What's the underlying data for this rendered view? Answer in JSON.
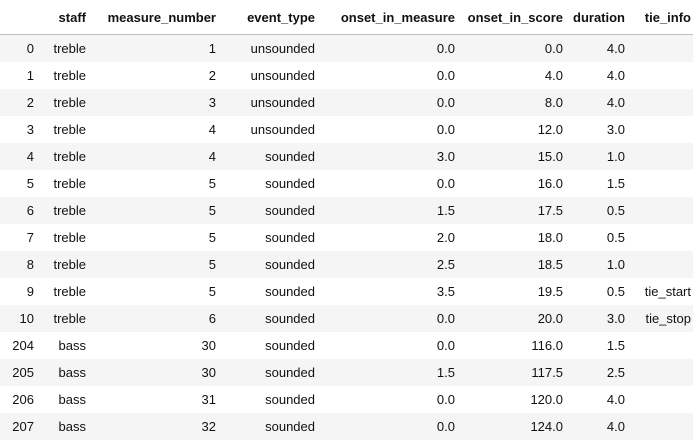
{
  "table": {
    "columns": [
      "",
      "staff",
      "measure_number",
      "event_type",
      "onset_in_measure",
      "onset_in_score",
      "duration",
      "tie_info"
    ],
    "rows": [
      [
        "0",
        "treble",
        "1",
        "unsounded",
        "0.0",
        "0.0",
        "4.0",
        ""
      ],
      [
        "1",
        "treble",
        "2",
        "unsounded",
        "0.0",
        "4.0",
        "4.0",
        ""
      ],
      [
        "2",
        "treble",
        "3",
        "unsounded",
        "0.0",
        "8.0",
        "4.0",
        ""
      ],
      [
        "3",
        "treble",
        "4",
        "unsounded",
        "0.0",
        "12.0",
        "3.0",
        ""
      ],
      [
        "4",
        "treble",
        "4",
        "sounded",
        "3.0",
        "15.0",
        "1.0",
        ""
      ],
      [
        "5",
        "treble",
        "5",
        "sounded",
        "0.0",
        "16.0",
        "1.5",
        ""
      ],
      [
        "6",
        "treble",
        "5",
        "sounded",
        "1.5",
        "17.5",
        "0.5",
        ""
      ],
      [
        "7",
        "treble",
        "5",
        "sounded",
        "2.0",
        "18.0",
        "0.5",
        ""
      ],
      [
        "8",
        "treble",
        "5",
        "sounded",
        "2.5",
        "18.5",
        "1.0",
        ""
      ],
      [
        "9",
        "treble",
        "5",
        "sounded",
        "3.5",
        "19.5",
        "0.5",
        "tie_start"
      ],
      [
        "10",
        "treble",
        "6",
        "sounded",
        "0.0",
        "20.0",
        "3.0",
        "tie_stop"
      ],
      [
        "204",
        "bass",
        "30",
        "sounded",
        "0.0",
        "116.0",
        "1.5",
        ""
      ],
      [
        "205",
        "bass",
        "30",
        "sounded",
        "1.5",
        "117.5",
        "2.5",
        ""
      ],
      [
        "206",
        "bass",
        "31",
        "sounded",
        "0.0",
        "120.0",
        "4.0",
        ""
      ],
      [
        "207",
        "bass",
        "32",
        "sounded",
        "0.0",
        "124.0",
        "4.0",
        ""
      ]
    ]
  }
}
